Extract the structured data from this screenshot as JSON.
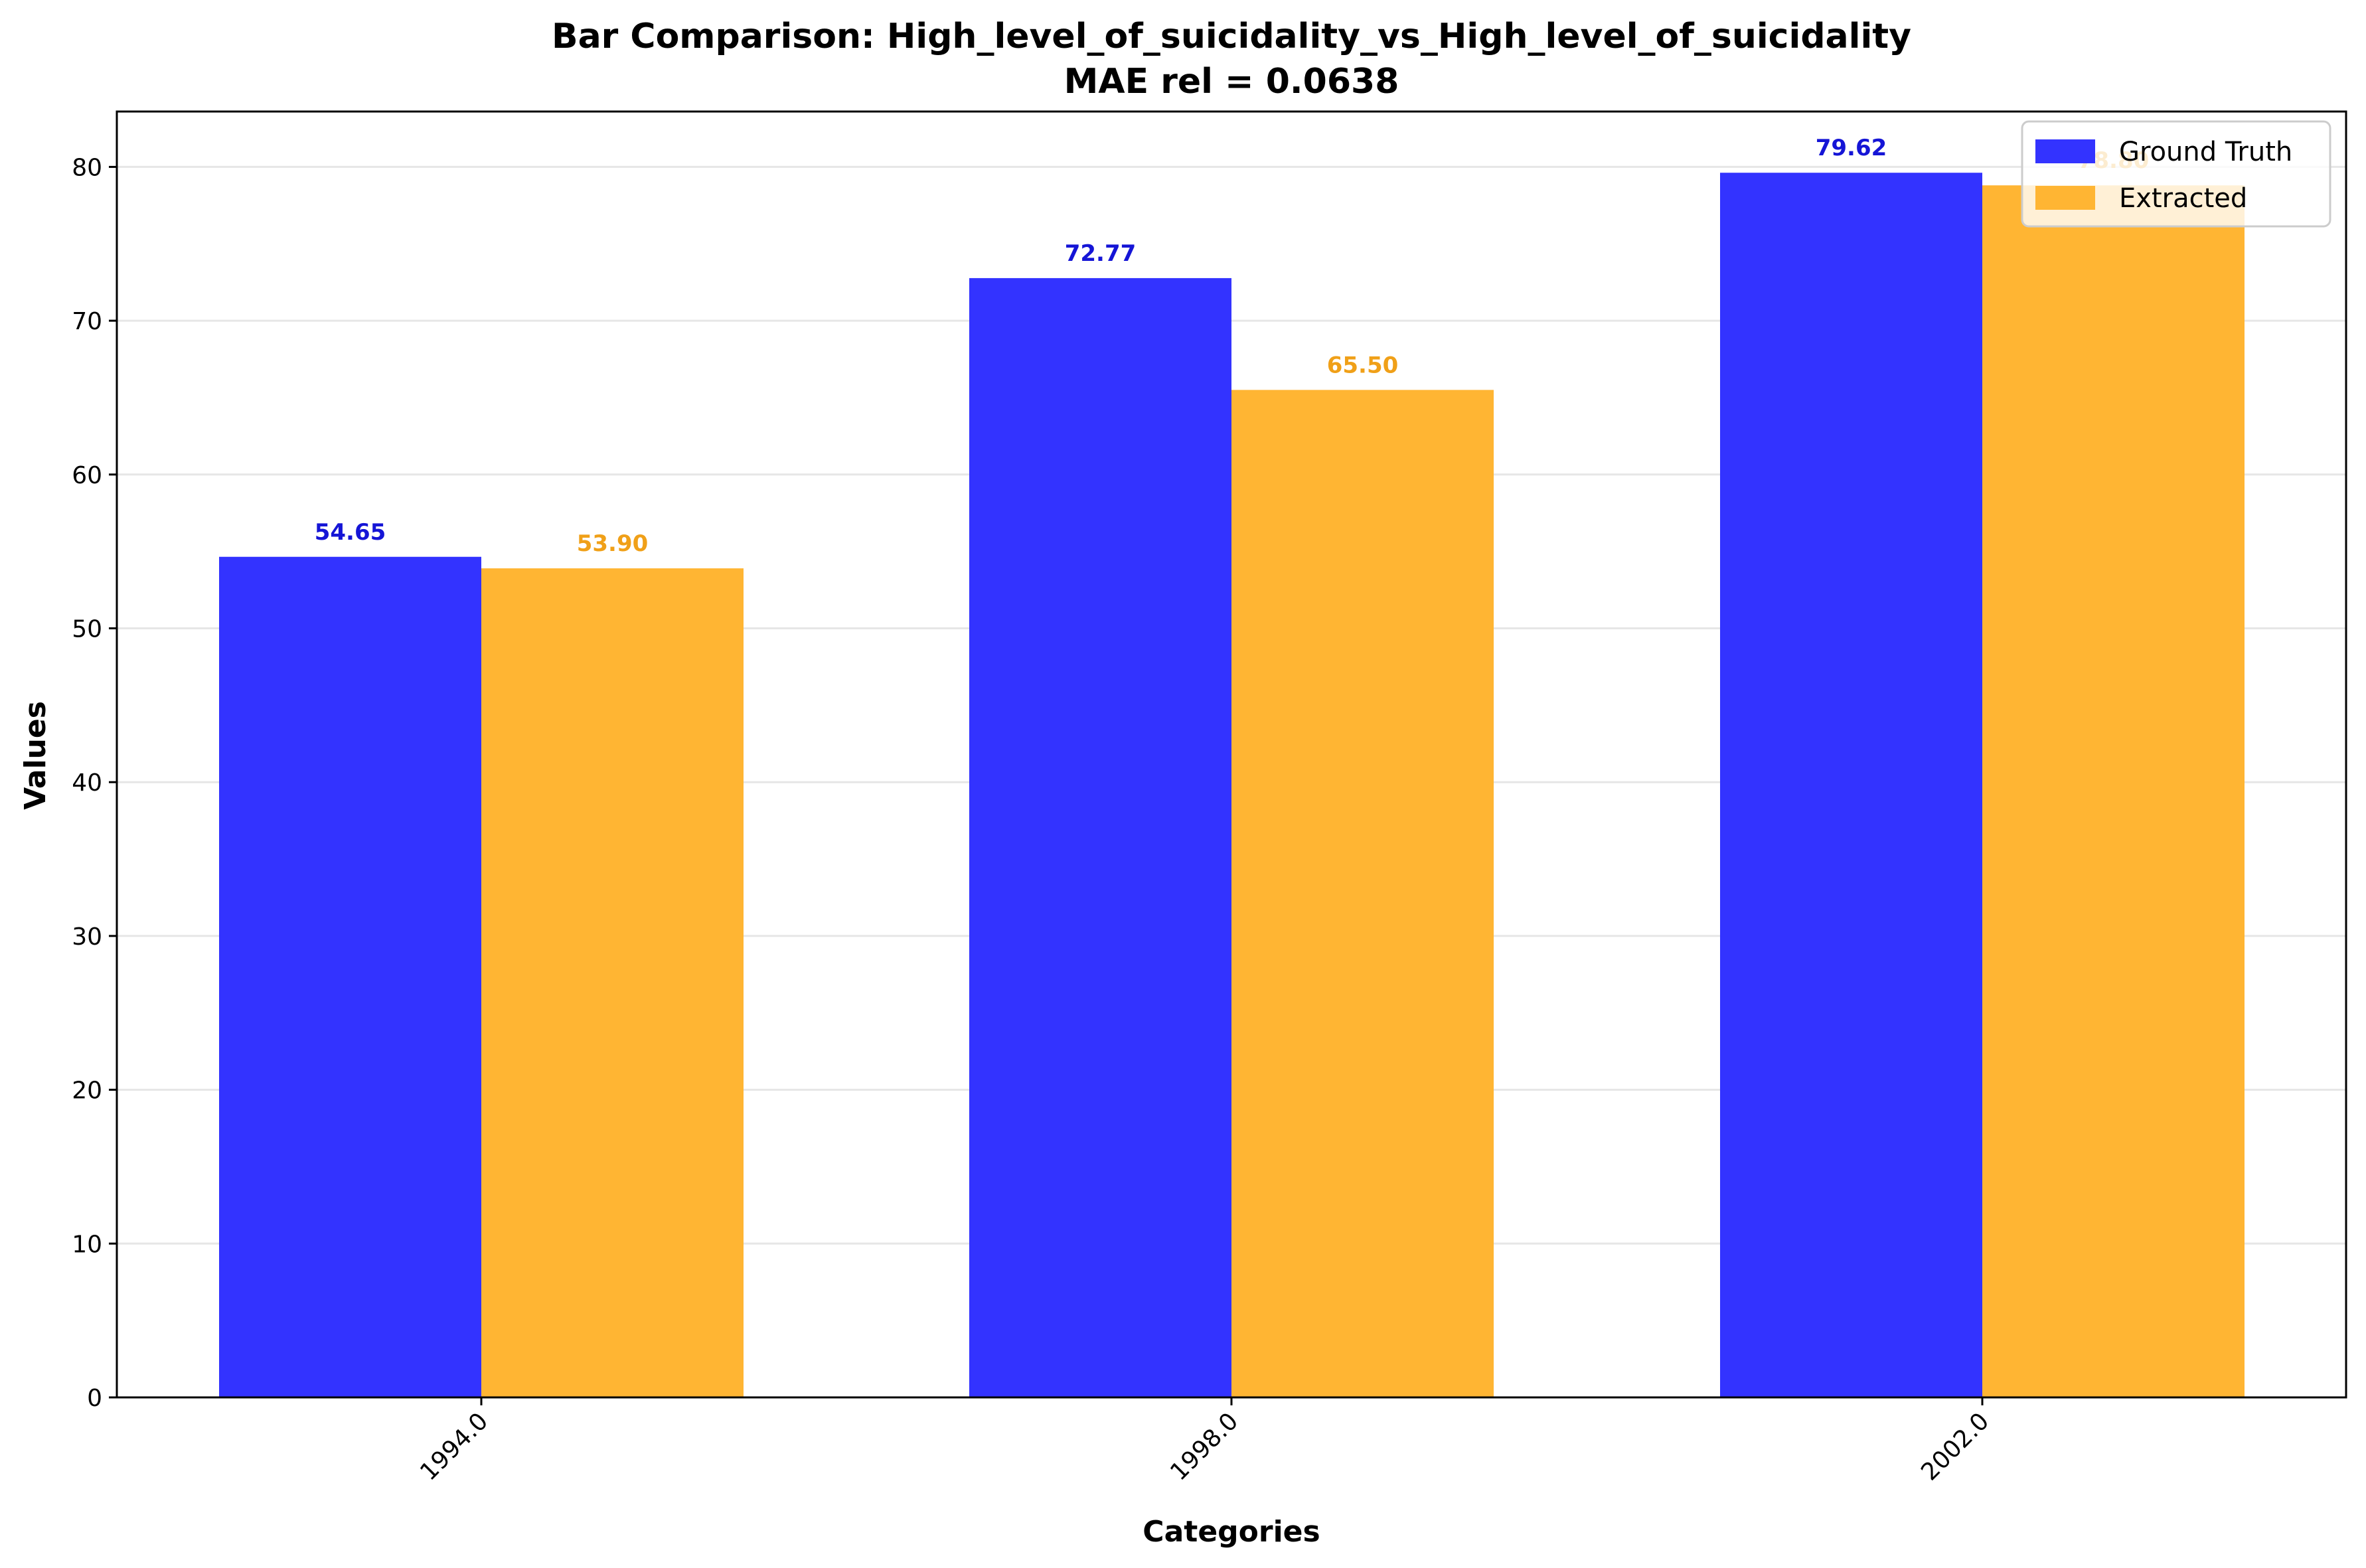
{
  "chart_data": {
    "type": "bar",
    "title": "Bar Comparison: High_level_of_suicidality_vs_High_level_of_suicidality",
    "subtitle": "MAE rel = 0.0638",
    "xlabel": "Categories",
    "ylabel": "Values",
    "categories": [
      "1994.0",
      "1998.0",
      "2002.0"
    ],
    "series": [
      {
        "name": "Ground Truth",
        "color": "#3333ff",
        "label_color": "#1515d6",
        "values": [
          54.65,
          72.77,
          79.62
        ],
        "value_labels": [
          "54.65",
          "72.77",
          "79.62"
        ]
      },
      {
        "name": "Extracted",
        "color": "#ffb533",
        "label_color": "#f0a018",
        "values": [
          53.9,
          65.5,
          78.8
        ],
        "value_labels": [
          "53.90",
          "65.50",
          "78.80"
        ]
      }
    ],
    "ylim": [
      0,
      83.6
    ],
    "yticks": [
      0,
      10,
      20,
      30,
      40,
      50,
      60,
      70,
      80
    ],
    "ytick_labels": [
      "0",
      "10",
      "20",
      "30",
      "40",
      "50",
      "60",
      "70",
      "80"
    ],
    "grid": true,
    "legend_position": "top-right"
  }
}
